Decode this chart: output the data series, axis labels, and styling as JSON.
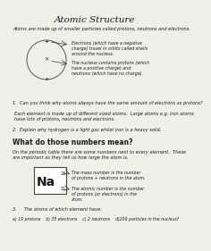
{
  "title": "Atomic Structure",
  "bg_color": "#f0efe8",
  "text_color": "#1a1a1a",
  "title_fs": 7.5,
  "body_fs": 3.6,
  "bold_fs": 5.5,
  "intro_text": "Atoms are made up of smaller particles called protons, neutrons and electrons.",
  "electron_label": "Electrons (which have a negative\ncharge) travel in orbits called shells\naround the nucleus.",
  "nucleus_label": "The nucleus contains protons (which\nhave a positive charge) and\nneutrons (which have no charge).",
  "q1": "1.  Can you think why atoms always have the same amount of electrons as protons?",
  "ans1": "Each element is made up of different sized atoms.  Large atoms e.g. iron atoms\nhave lots of protons, neutrons and electrons.",
  "q2": "2.  Explain why hydrogen is a light gas whilst iron is a heavy solid.",
  "section": "What do those numbers mean?",
  "periodic_intro": "On the periodic table there are some numbers next to every element.  These\nare important as they tell us how large the atom is.",
  "mass_label": "The mass number is the number\nof protons + neutrons in the atom.",
  "atomic_label": "The atomic number is the number\nof protons (or electrons) in the\natom.",
  "na": "Na",
  "mass_num": "23",
  "atomic_num": "11",
  "q3": "3.     The atoms of which element have:",
  "q3opts": "a) 19 protons    b) 35 electrons    c) 2 neutrons    d)200 particles in the nucleus?"
}
